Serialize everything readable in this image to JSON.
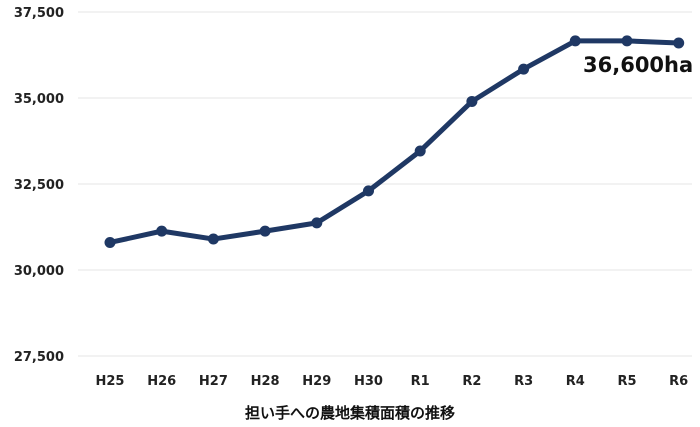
{
  "chart_data": {
    "type": "line",
    "title": "",
    "xlabel": "担い手への農地集積面積の推移",
    "ylabel": "",
    "categories": [
      "H25",
      "H26",
      "H27",
      "H28",
      "H29",
      "H30",
      "R1",
      "R2",
      "R3",
      "R4",
      "R5",
      "R6"
    ],
    "series": [
      {
        "values": [
          30800,
          31130,
          30900,
          31130,
          31370,
          32300,
          33460,
          34900,
          35840,
          36660,
          36660,
          36600
        ]
      }
    ],
    "ylim": [
      27500,
      37500
    ],
    "yticks": [
      27500,
      30000,
      32500,
      35000,
      37500
    ],
    "ytick_labels": [
      "27,500",
      "30,000",
      "32,500",
      "35,000",
      "37,500"
    ],
    "grid": true,
    "annotation": "36,600ha",
    "line_color": "#1f3864"
  }
}
